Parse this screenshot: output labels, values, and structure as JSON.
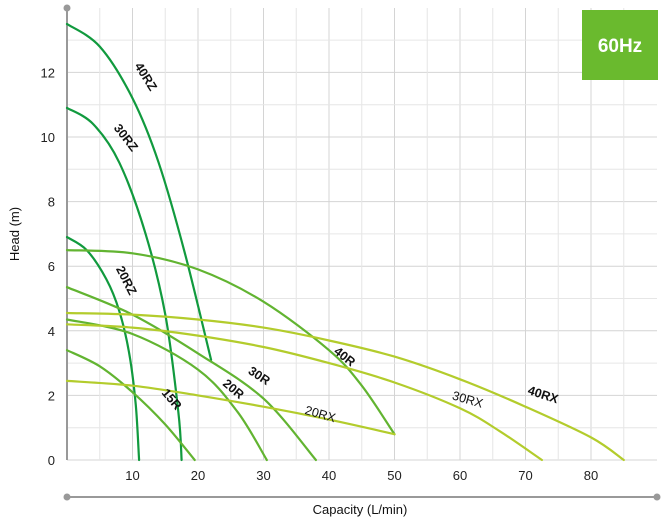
{
  "badge": {
    "text": "60Hz",
    "color": "#6aba2e"
  },
  "chart_data": {
    "type": "line",
    "title": "",
    "xlabel": "Capacity (L/min)",
    "ylabel": "Head (m)",
    "xlim": [
      0,
      90
    ],
    "ylim": [
      0,
      14
    ],
    "x_ticks": [
      10,
      20,
      30,
      40,
      50,
      60,
      70,
      80
    ],
    "y_ticks": [
      0,
      2,
      4,
      6,
      8,
      10,
      12
    ],
    "grid": true,
    "series": [
      {
        "name": "40RZ",
        "color": "#119a3e",
        "bold": true,
        "x": [
          0,
          5,
          10,
          14,
          18,
          22
        ],
        "y": [
          13.5,
          12.8,
          11.2,
          9.2,
          6.4,
          3.1
        ]
      },
      {
        "name": "30RZ",
        "color": "#119a3e",
        "bold": true,
        "x": [
          0,
          4,
          8,
          12,
          15,
          17,
          17.5
        ],
        "y": [
          10.9,
          10.4,
          9.2,
          7.0,
          4.5,
          1.5,
          0
        ]
      },
      {
        "name": "20RZ",
        "color": "#119a3e",
        "bold": true,
        "x": [
          0,
          3,
          6,
          8,
          9.5,
          10.5,
          11
        ],
        "y": [
          6.9,
          6.5,
          5.6,
          4.6,
          3.3,
          1.7,
          0
        ]
      },
      {
        "name": "15R",
        "color": "#62b431",
        "bold": true,
        "x": [
          0,
          5,
          10,
          15,
          19.5
        ],
        "y": [
          3.4,
          2.9,
          2.1,
          1.1,
          0
        ]
      },
      {
        "name": "20R",
        "color": "#62b431",
        "bold": true,
        "x": [
          0,
          10,
          20,
          26,
          30.5
        ],
        "y": [
          4.35,
          3.9,
          2.8,
          1.5,
          0
        ]
      },
      {
        "name": "30R",
        "color": "#62b431",
        "bold": true,
        "x": [
          0,
          10,
          20,
          30,
          38
        ],
        "y": [
          5.35,
          4.5,
          3.3,
          1.9,
          0
        ]
      },
      {
        "name": "40R",
        "color": "#62b431",
        "bold": true,
        "x": [
          0,
          10,
          20,
          30,
          40,
          45,
          50
        ],
        "y": [
          6.5,
          6.4,
          5.9,
          4.9,
          3.4,
          2.3,
          0.8
        ]
      },
      {
        "name": "20RX",
        "color": "#b3cc2c",
        "bold": false,
        "x": [
          0,
          10,
          20,
          30,
          40,
          50
        ],
        "y": [
          2.45,
          2.3,
          2.0,
          1.65,
          1.25,
          0.8
        ]
      },
      {
        "name": "30RX",
        "color": "#b3cc2c",
        "bold": false,
        "x": [
          0,
          10,
          20,
          30,
          40,
          50,
          60,
          66,
          72.5
        ],
        "y": [
          4.2,
          4.1,
          3.85,
          3.5,
          3.0,
          2.4,
          1.6,
          0.9,
          0
        ]
      },
      {
        "name": "40RX",
        "color": "#b3cc2c",
        "bold": false,
        "x": [
          0,
          10,
          20,
          30,
          40,
          50,
          60,
          70,
          80,
          85
        ],
        "y": [
          4.55,
          4.5,
          4.35,
          4.1,
          3.7,
          3.2,
          2.5,
          1.65,
          0.7,
          0
        ]
      }
    ],
    "labels": [
      {
        "text": "40RZ",
        "x": 11.5,
        "y": 11.8,
        "rotate": 58,
        "color": "#111111",
        "bold": true
      },
      {
        "text": "30RZ",
        "x": 8.5,
        "y": 9.9,
        "rotate": 52,
        "color": "#111111",
        "bold": true
      },
      {
        "text": "20RZ",
        "x": 8.5,
        "y": 5.5,
        "rotate": 63,
        "color": "#111111",
        "bold": true
      },
      {
        "text": "15R",
        "x": 15.5,
        "y": 1.8,
        "rotate": 50,
        "color": "#111111",
        "bold": true
      },
      {
        "text": "20R",
        "x": 25,
        "y": 2.1,
        "rotate": 40,
        "color": "#111111",
        "bold": true
      },
      {
        "text": "30R",
        "x": 29,
        "y": 2.5,
        "rotate": 33,
        "color": "#111111",
        "bold": true
      },
      {
        "text": "40R",
        "x": 42,
        "y": 3.1,
        "rotate": 38,
        "color": "#111111",
        "bold": true
      },
      {
        "text": "20RX",
        "x": 38.5,
        "y": 1.3,
        "rotate": 16,
        "color": "#111111",
        "bold": false
      },
      {
        "text": "30RX",
        "x": 61,
        "y": 1.75,
        "rotate": 16,
        "color": "#111111",
        "bold": false
      },
      {
        "text": "40RX",
        "x": 72.5,
        "y": 1.9,
        "rotate": 18,
        "color": "#111111",
        "bold": true
      }
    ]
  }
}
